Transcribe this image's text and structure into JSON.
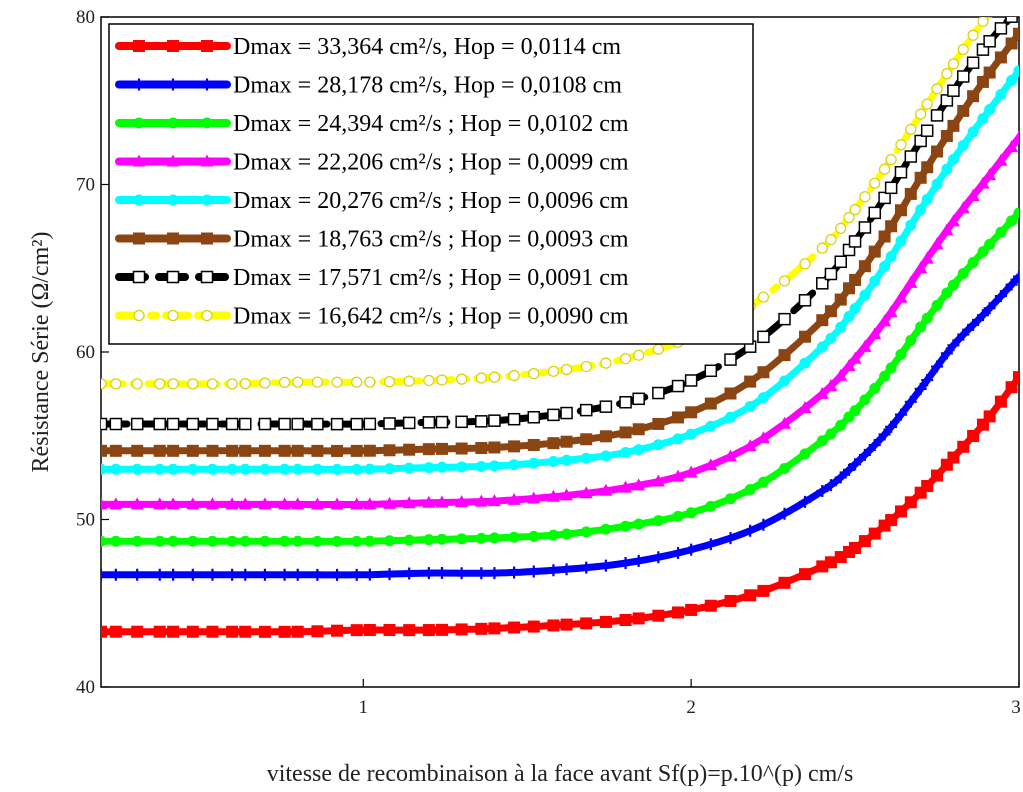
{
  "chart_data": {
    "type": "line",
    "title": "",
    "xlabel": "vitesse de recombinaison à la face avant Sf(p)=p.10^(p) cm/s",
    "ylabel": "Résistance Série (Ω/cm²)",
    "xlim": [
      0.2,
      3
    ],
    "ylim": [
      40,
      80
    ],
    "x_ticks": [
      "1",
      "2",
      "3"
    ],
    "y_ticks": [
      "40",
      "50",
      "60",
      "70",
      "80"
    ],
    "grid": false,
    "legend_position": "top-left",
    "x": [
      0.2,
      0.4,
      0.6,
      0.8,
      1.0,
      1.2,
      1.4,
      1.6,
      1.8,
      2.0,
      2.2,
      2.4,
      2.5,
      2.6,
      2.7,
      2.8,
      2.9,
      3.0
    ],
    "series": [
      {
        "name": "Dmax = 33,364 cm²/s, Hop = 0,0114 cm",
        "color": "#ff0000",
        "marker": "square",
        "dash": "solid",
        "values": [
          43.3,
          43.3,
          43.3,
          43.3,
          43.4,
          43.4,
          43.5,
          43.7,
          44.0,
          44.6,
          45.6,
          47.2,
          48.3,
          49.8,
          51.6,
          53.7,
          55.9,
          58.5
        ]
      },
      {
        "name": "Dmax = 28,178 cm²/s, Hop = 0,0108 cm",
        "color": "#0000ff",
        "marker": "plus",
        "dash": "solid",
        "values": [
          46.7,
          46.7,
          46.7,
          46.7,
          46.7,
          46.8,
          46.8,
          47.0,
          47.4,
          48.2,
          49.5,
          51.7,
          53.3,
          55.3,
          57.8,
          60.4,
          62.4,
          64.5
        ]
      },
      {
        "name": "Dmax = 24,394 cm²/s ; Hop = 0,0102 cm",
        "color": "#00ff00",
        "marker": "circle",
        "dash": "solid",
        "values": [
          48.7,
          48.7,
          48.7,
          48.7,
          48.7,
          48.8,
          48.9,
          49.1,
          49.6,
          50.4,
          52.0,
          54.7,
          56.5,
          58.8,
          61.5,
          64.0,
          66.2,
          68.3
        ]
      },
      {
        "name": "Dmax = 22,206 cm²/s ; Hop = 0,0099 cm",
        "color": "#ff00ff",
        "marker": "triangle",
        "dash": "solid",
        "values": [
          50.9,
          50.9,
          50.9,
          50.9,
          50.9,
          51.0,
          51.1,
          51.4,
          51.9,
          52.8,
          54.6,
          57.5,
          59.6,
          62.1,
          65.0,
          67.8,
          70.3,
          72.8
        ]
      },
      {
        "name": "Dmax = 20,276 cm²/s ; Hop = 0,0096 cm",
        "color": "#00ffff",
        "marker": "circle",
        "dash": "solid",
        "values": [
          53.0,
          53.0,
          53.0,
          53.0,
          53.0,
          53.1,
          53.2,
          53.5,
          54.0,
          55.1,
          57.0,
          60.3,
          62.6,
          65.4,
          68.5,
          71.5,
          74.2,
          76.8
        ]
      },
      {
        "name": "Dmax = 18,763 cm²/s ; Hop = 0,0093 cm",
        "color": "#8b4513",
        "marker": "square",
        "dash": "solid",
        "values": [
          54.1,
          54.1,
          54.1,
          54.1,
          54.1,
          54.2,
          54.3,
          54.6,
          55.2,
          56.4,
          58.5,
          61.9,
          64.3,
          67.2,
          70.4,
          73.5,
          76.4,
          79.0
        ]
      },
      {
        "name": "Dmax = 17,571 cm²/s ; Hop = 0,0091 cm",
        "color": "#000000",
        "marker": "open-square",
        "dash": "dashed",
        "values": [
          55.7,
          55.7,
          55.7,
          55.7,
          55.7,
          55.8,
          55.9,
          56.3,
          57.0,
          58.3,
          60.6,
          64.1,
          66.6,
          69.5,
          72.6,
          75.6,
          78.3,
          80.5
        ]
      },
      {
        "name": "Dmax = 16,642 cm²/s ; Hop = 0,0090 cm",
        "color": "#ffff00",
        "marker": "open-circle",
        "dash": "dashdot",
        "values": [
          58.1,
          58.1,
          58.1,
          58.2,
          58.2,
          58.3,
          58.5,
          58.9,
          59.6,
          60.9,
          63.0,
          66.2,
          68.5,
          71.2,
          74.2,
          77.2,
          80.0,
          82.5
        ]
      }
    ]
  }
}
